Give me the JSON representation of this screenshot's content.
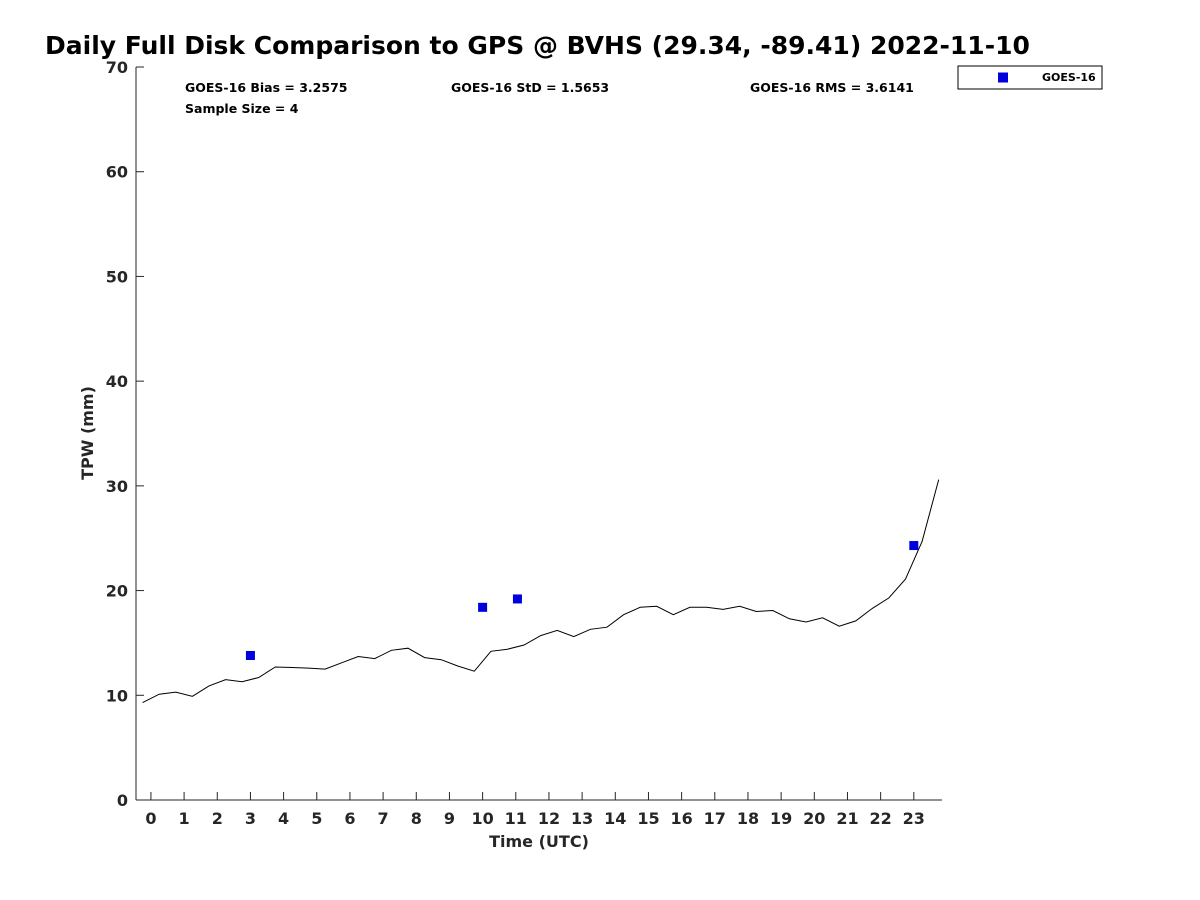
{
  "chart_data": {
    "type": "line",
    "title": "Daily Full Disk Comparison to GPS @ BVHS (29.34, -89.41) 2022-11-10",
    "xlabel": "Time (UTC)",
    "ylabel": "TPW (mm)",
    "xlim": [
      -0.45,
      23.85
    ],
    "ylim": [
      0,
      70
    ],
    "xticks": [
      0,
      1,
      2,
      3,
      4,
      5,
      6,
      7,
      8,
      9,
      10,
      11,
      12,
      13,
      14,
      15,
      16,
      17,
      18,
      19,
      20,
      21,
      22,
      23
    ],
    "yticks": [
      0,
      10,
      20,
      30,
      40,
      50,
      60,
      70
    ],
    "grid": false,
    "stats": {
      "bias": "GOES-16 Bias = 3.2575",
      "std": "GOES-16 StD = 1.5653",
      "rms": "GOES-16 RMS = 3.6141",
      "sample": "Sample Size = 4"
    },
    "legend": {
      "position": "outside-top-right",
      "entries": [
        "GOES-16"
      ]
    },
    "series": [
      {
        "kind": "line",
        "color": "#000000",
        "x": [
          -0.25,
          0.25,
          0.75,
          1.25,
          1.75,
          2.25,
          2.75,
          3.25,
          3.75,
          4.25,
          4.75,
          5.25,
          5.75,
          6.25,
          6.75,
          7.25,
          7.75,
          8.25,
          8.75,
          9.25,
          9.75,
          10.25,
          10.75,
          11.25,
          11.75,
          12.25,
          12.75,
          13.25,
          13.75,
          14.25,
          14.75,
          15.25,
          15.75,
          16.25,
          16.75,
          17.25,
          17.75,
          18.25,
          18.75,
          19.25,
          19.75,
          20.25,
          20.75,
          21.25,
          21.75,
          22.25,
          22.75,
          23.25,
          23.75
        ],
        "y": [
          9.3,
          10.1,
          10.3,
          9.9,
          10.9,
          11.5,
          11.3,
          11.7,
          12.7,
          12.65,
          12.6,
          12.5,
          13.1,
          13.7,
          13.5,
          14.3,
          14.5,
          13.6,
          13.4,
          12.8,
          12.3,
          14.2,
          14.4,
          14.8,
          15.7,
          16.2,
          15.6,
          16.3,
          16.5,
          17.7,
          18.4,
          18.5,
          17.7,
          18.4,
          18.4,
          18.2,
          18.5,
          18.0,
          18.1,
          17.3,
          17.0,
          17.4,
          16.6,
          17.1,
          18.3,
          19.3,
          21.1,
          24.7,
          30.6
        ]
      },
      {
        "name": "GOES-16",
        "kind": "scatter",
        "color": "#0000dd",
        "x": [
          3.0,
          10.0,
          11.05,
          23.0
        ],
        "y": [
          13.8,
          18.4,
          19.2,
          24.3
        ]
      }
    ]
  }
}
